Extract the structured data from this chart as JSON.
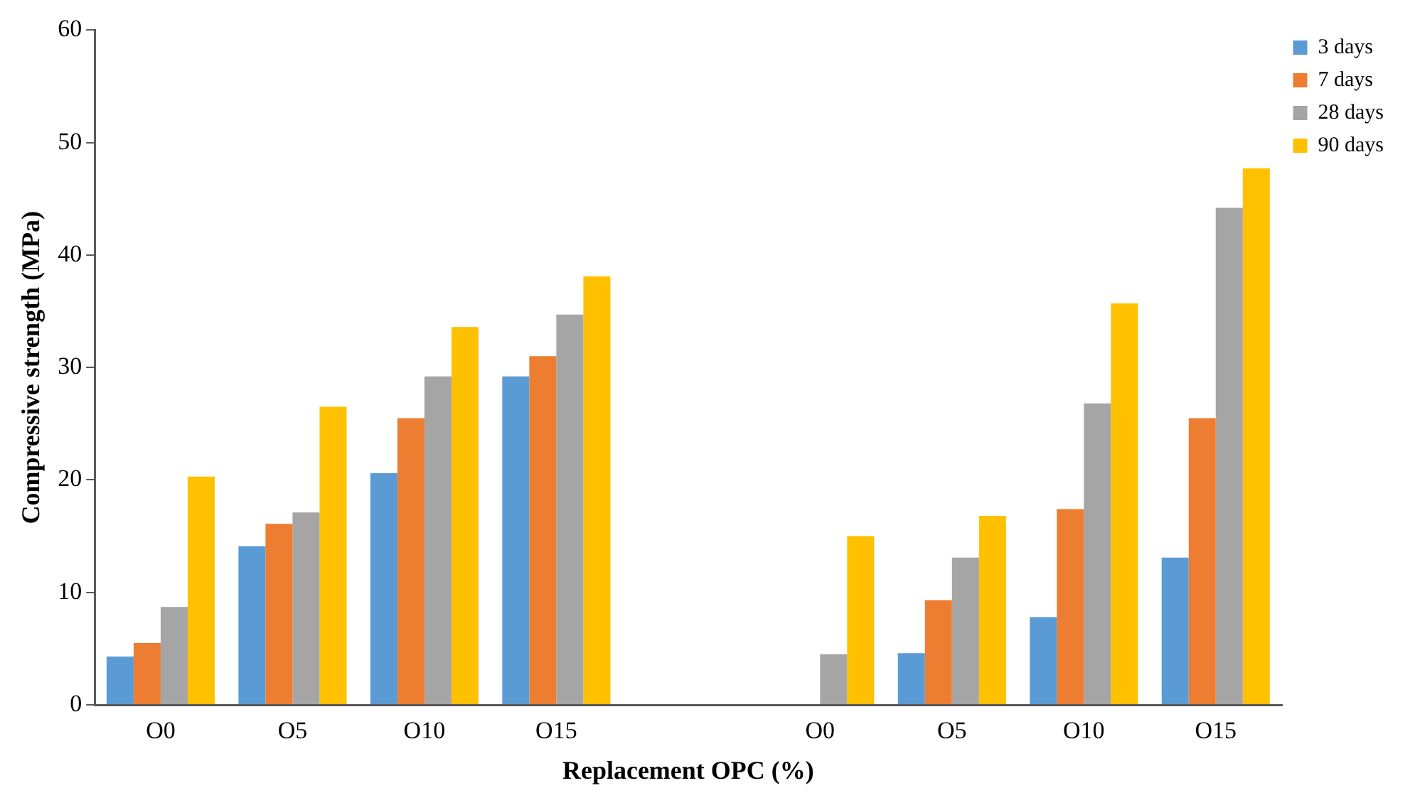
{
  "chart_data": {
    "type": "bar",
    "xlabel": "Replacement OPC (%)",
    "ylabel": "Compressive strength (MPa)",
    "categories": [
      "O0",
      "O5",
      "O10",
      "O15",
      null,
      "O0",
      "O5",
      "O10",
      "O15"
    ],
    "series": [
      {
        "name": "3 days",
        "color": "#5b9bd5",
        "values": [
          4.3,
          14.1,
          20.6,
          29.2,
          null,
          null,
          4.6,
          7.8,
          13.1
        ]
      },
      {
        "name": "7 days",
        "color": "#ed7d31",
        "values": [
          5.5,
          16.1,
          25.5,
          31.0,
          null,
          null,
          9.3,
          17.4,
          25.5
        ]
      },
      {
        "name": "28 days",
        "color": "#a5a5a5",
        "values": [
          8.7,
          17.1,
          29.2,
          34.7,
          null,
          4.5,
          13.1,
          26.8,
          44.2
        ]
      },
      {
        "name": "90 days",
        "color": "#ffc000",
        "values": [
          20.3,
          26.5,
          33.6,
          38.1,
          null,
          15.0,
          16.8,
          35.7,
          47.7
        ]
      }
    ],
    "ylim": [
      0,
      60
    ],
    "yticks": [
      0,
      10,
      20,
      30,
      40,
      50,
      60
    ],
    "grid": false,
    "legend": "top right"
  }
}
